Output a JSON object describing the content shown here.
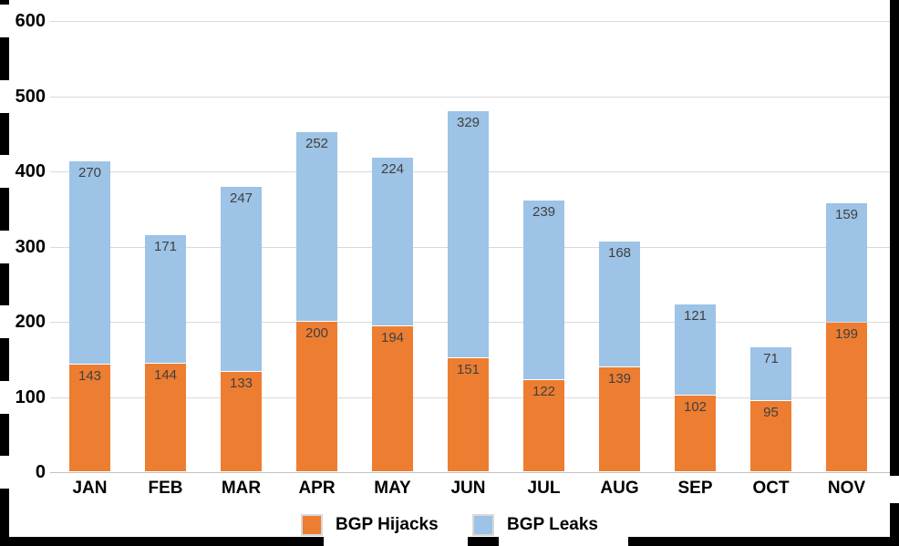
{
  "chart_data": {
    "type": "bar",
    "stacked": true,
    "title": "",
    "xlabel": "",
    "ylabel": "",
    "categories": [
      "JAN",
      "FEB",
      "MAR",
      "APR",
      "MAY",
      "JUN",
      "JUL",
      "AUG",
      "SEP",
      "OCT",
      "NOV"
    ],
    "series": [
      {
        "name": "BGP Hijacks",
        "color": "#ED7D31",
        "values": [
          143,
          144,
          133,
          200,
          194,
          151,
          122,
          139,
          102,
          95,
          199
        ]
      },
      {
        "name": "BGP Leaks",
        "color": "#9DC3E6",
        "values": [
          270,
          171,
          247,
          252,
          224,
          329,
          239,
          168,
          121,
          71,
          159
        ]
      }
    ],
    "ylim": [
      0,
      600
    ],
    "yticks": [
      0,
      100,
      200,
      300,
      400,
      500,
      600
    ],
    "grid": true,
    "legend_position": "bottom",
    "data_labels": true,
    "data_label_color": "#404040",
    "gridline_color": "#d9d9d9",
    "axis_line_color": "#bfbfbf",
    "frame_color": "#000000"
  }
}
